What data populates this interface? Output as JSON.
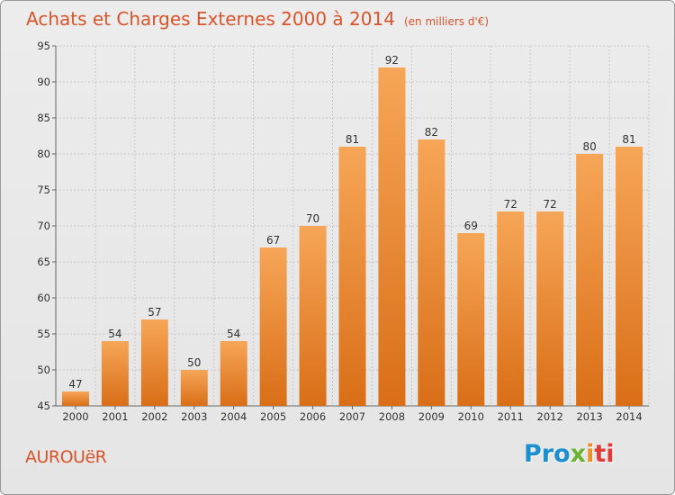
{
  "page": {
    "title": "Achats et Charges Externes 2000 à 2014",
    "unit": "(en milliers d'€)",
    "commune": "AUROUëR",
    "logo": {
      "p1": "Pro",
      "p2": "x",
      "p3": "i",
      "p4": "ti"
    }
  },
  "colors": {
    "title": "#d8542a",
    "bar_top": "#f6a657",
    "bar_bottom": "#d96e17",
    "grid": "#c8c8c8"
  },
  "chart_data": {
    "type": "bar",
    "categories": [
      "2000",
      "2001",
      "2002",
      "2003",
      "2004",
      "2005",
      "2006",
      "2007",
      "2008",
      "2009",
      "2010",
      "2011",
      "2012",
      "2013",
      "2014"
    ],
    "values": [
      47,
      54,
      57,
      50,
      54,
      67,
      70,
      81,
      92,
      82,
      69,
      72,
      72,
      80,
      81
    ],
    "ylim": [
      45,
      95
    ],
    "yticks": [
      45,
      50,
      55,
      60,
      65,
      70,
      75,
      80,
      85,
      90,
      95
    ],
    "grid": true,
    "title": "Achats et Charges Externes 2000 à 2014",
    "xlabel": "",
    "ylabel": ""
  }
}
